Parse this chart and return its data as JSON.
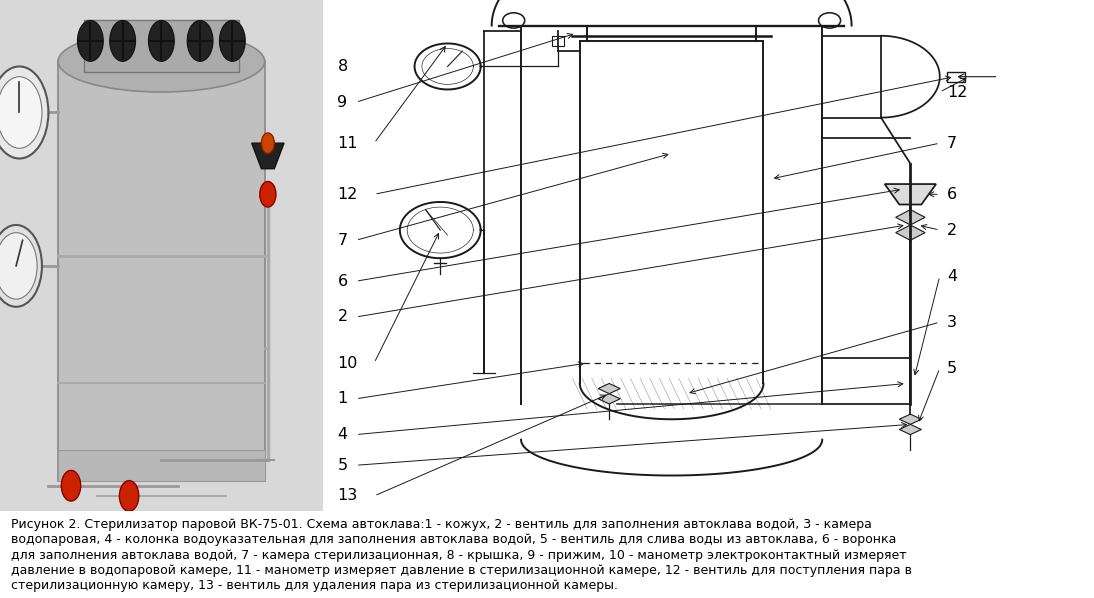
{
  "background_color": "#ffffff",
  "caption_line1": "Рисунок 2. Стерилизатор паровой ВК-75-01. Схема автоклава:1 - кожух, 2 - вентиль для заполнения автоклава водой, 3 - камера",
  "caption_line2": "водопаровая, 4 - колонка водоуказательная для заполнения автоклава водой, 5 - вентиль для слива воды из автоклава, 6 - воронка",
  "caption_line3": "для заполнения автоклава водой, 7 - камера стерилизационная, 8 - крышка, 9 - прижим, 10 - манометр электроконтактный измеряет",
  "caption_line4": "давление в водопаровой камере, 11 - манометр измеряет давление в стерилизационной камере, 12 - вентиль для поступления пара в",
  "caption_line5": "стерилизационную камеру, 13 - вентиль для удаления пара из стерилизационной камеры.",
  "caption_fontsize": 9.0,
  "lc": "#1a1a1a",
  "lw": 1.4,
  "tlw": 0.9,
  "label_fontsize": 11.5
}
